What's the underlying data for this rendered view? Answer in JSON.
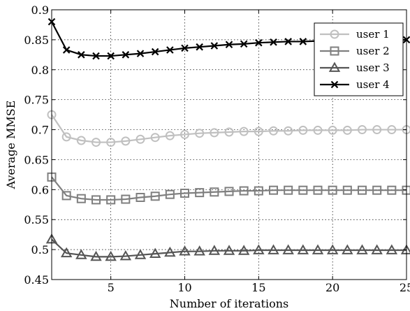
{
  "chart_data": {
    "type": "line",
    "title": "",
    "xlabel": "Number of iterations",
    "ylabel": "Average MMSE",
    "xlim": [
      1,
      25
    ],
    "ylim": [
      0.45,
      0.9
    ],
    "grid": true,
    "legend_position": "top-right",
    "xticks": [
      5,
      10,
      15,
      20,
      25
    ],
    "yticks": [
      0.45,
      0.5,
      0.55,
      0.6,
      0.65,
      0.7,
      0.75,
      0.8,
      0.85,
      0.9
    ],
    "xtick_labels": [
      "5",
      "10",
      "15",
      "20",
      "25"
    ],
    "ytick_labels": [
      "0.45",
      "0.5",
      "0.55",
      "0.6",
      "0.65",
      "0.7",
      "0.75",
      "0.8",
      "0.85",
      "0.9"
    ],
    "x": [
      1,
      2,
      3,
      4,
      5,
      6,
      7,
      8,
      9,
      10,
      11,
      12,
      13,
      14,
      15,
      16,
      17,
      18,
      19,
      20,
      21,
      22,
      23,
      24,
      25
    ],
    "series": [
      {
        "name": "user 1",
        "color": "#c0c0c0",
        "marker": "circle",
        "values": [
          0.725,
          0.688,
          0.682,
          0.679,
          0.679,
          0.681,
          0.684,
          0.687,
          0.69,
          0.692,
          0.694,
          0.695,
          0.696,
          0.697,
          0.697,
          0.698,
          0.698,
          0.699,
          0.699,
          0.699,
          0.699,
          0.7,
          0.7,
          0.7,
          0.7
        ]
      },
      {
        "name": "user 2",
        "color": "#7f7f7f",
        "marker": "square",
        "values": [
          0.621,
          0.59,
          0.585,
          0.583,
          0.583,
          0.584,
          0.587,
          0.589,
          0.592,
          0.594,
          0.595,
          0.596,
          0.597,
          0.598,
          0.598,
          0.599,
          0.599,
          0.599,
          0.599,
          0.599,
          0.599,
          0.599,
          0.599,
          0.599,
          0.599
        ]
      },
      {
        "name": "user 3",
        "color": "#555555",
        "marker": "triangle",
        "values": [
          0.517,
          0.494,
          0.491,
          0.488,
          0.488,
          0.489,
          0.491,
          0.493,
          0.495,
          0.497,
          0.497,
          0.498,
          0.498,
          0.498,
          0.499,
          0.499,
          0.499,
          0.499,
          0.499,
          0.499,
          0.499,
          0.499,
          0.499,
          0.499,
          0.499
        ]
      },
      {
        "name": "user 4",
        "color": "#000000",
        "marker": "x",
        "values": [
          0.88,
          0.833,
          0.825,
          0.823,
          0.823,
          0.825,
          0.827,
          0.83,
          0.833,
          0.836,
          0.838,
          0.84,
          0.842,
          0.843,
          0.845,
          0.846,
          0.847,
          0.847,
          0.848,
          0.848,
          0.848,
          0.849,
          0.849,
          0.849,
          0.85
        ]
      }
    ]
  }
}
